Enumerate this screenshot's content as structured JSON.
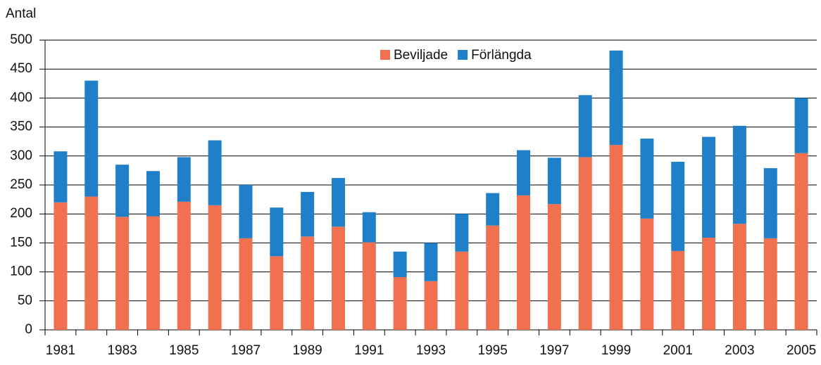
{
  "chart_data": {
    "type": "stacked_bar",
    "y_label": "Antal",
    "categories": [
      "1981",
      null,
      "1983",
      null,
      "1985",
      null,
      "1987",
      null,
      "1989",
      null,
      "1991",
      null,
      "1993",
      null,
      "1995",
      null,
      "1997",
      null,
      "1999",
      null,
      "2001",
      null,
      "2003",
      null,
      "2005"
    ],
    "series": [
      {
        "name": "Beviljade",
        "color": "#f07050",
        "values": [
          220,
          230,
          195,
          196,
          221,
          215,
          158,
          127,
          161,
          178,
          151,
          91,
          84,
          135,
          180,
          232,
          217,
          298,
          319,
          192,
          136,
          159,
          183,
          158,
          305
        ]
      },
      {
        "name": "Förlängda",
        "color": "#1f7fc8",
        "values": [
          88,
          200,
          90,
          78,
          77,
          112,
          92,
          84,
          77,
          84,
          52,
          44,
          66,
          65,
          56,
          78,
          80,
          107,
          163,
          138,
          154,
          174,
          169,
          121,
          95
        ]
      }
    ],
    "ylim": [
      0,
      500
    ],
    "yticks": [
      0,
      50,
      100,
      150,
      200,
      250,
      300,
      350,
      400,
      450,
      500
    ],
    "grid": true,
    "legend": "top"
  }
}
